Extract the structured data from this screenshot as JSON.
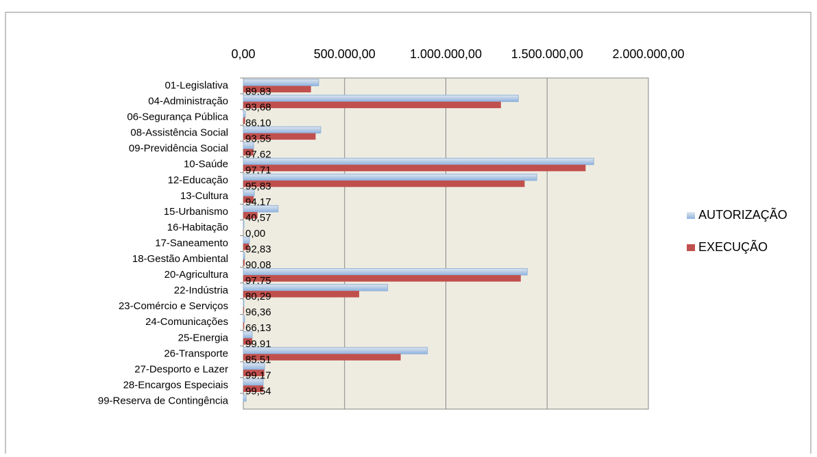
{
  "chart_data": {
    "type": "bar",
    "orientation": "horizontal",
    "categories": [
      "01-Legislativa",
      "04-Administração",
      "06-Segurança Pública",
      "08-Assistência Social",
      "09-Previdência Social",
      "10-Saúde",
      "12-Educação",
      "13-Cultura",
      "15-Urbanismo",
      "16-Habitação",
      "17-Saneamento",
      "18-Gestão Ambiental",
      "20-Agricultura",
      "22-Indústria",
      "23-Comércio e Serviços",
      "24-Comunicações",
      "25-Energia",
      "26-Transporte",
      "27-Desporto e Lazer",
      "28-Encargos Especiais",
      "99-Reserva de Contingência"
    ],
    "series": [
      {
        "name": "AUTORIZAÇÃO",
        "color": "#b8cce4",
        "values": [
          372000,
          1358000,
          10000,
          382000,
          51000,
          1730000,
          1449000,
          54000,
          172000,
          3000,
          30000,
          7000,
          1402000,
          713000,
          3000,
          6000,
          44000,
          909000,
          105000,
          98000,
          14000
        ]
      },
      {
        "name": "EXECUÇÃO",
        "color": "#c0504d",
        "values": [
          334000,
          1272000,
          8600,
          357000,
          50000,
          1690000,
          1389000,
          51000,
          70000,
          0,
          28000,
          6000,
          1370000,
          572000,
          3000,
          4000,
          44000,
          777000,
          104000,
          98000,
          0
        ]
      }
    ],
    "percent_labels": {
      "values": [
        89.83,
        93.68,
        86.1,
        93.55,
        97.62,
        97.71,
        95.83,
        94.17,
        40.57,
        0.0,
        92.83,
        90.08,
        97.75,
        80.29,
        96.36,
        66.13,
        99.91,
        85.51,
        99.17,
        99.54,
        null
      ],
      "value_labels": [
        "89,83",
        "93,68",
        "86,10",
        "93,55",
        "97,62",
        "97,71",
        "95,83",
        "94,17",
        "40,57",
        "0,00",
        "92,83",
        "90,08",
        "97,75",
        "80,29",
        "96,36",
        "66,13",
        "99,91",
        "85,51",
        "99,17",
        "99,54",
        null
      ]
    },
    "xlim": [
      0,
      2000000
    ],
    "xticks": [
      {
        "value": 0,
        "label": "0,00"
      },
      {
        "value": 500000,
        "label": "500.000,00"
      },
      {
        "value": 1000000,
        "label": "1.000.000,00"
      },
      {
        "value": 1500000,
        "label": "1.500.000,00"
      },
      {
        "value": 2000000,
        "label": "2.000.000,00"
      }
    ],
    "grid": true,
    "legend": "right"
  }
}
